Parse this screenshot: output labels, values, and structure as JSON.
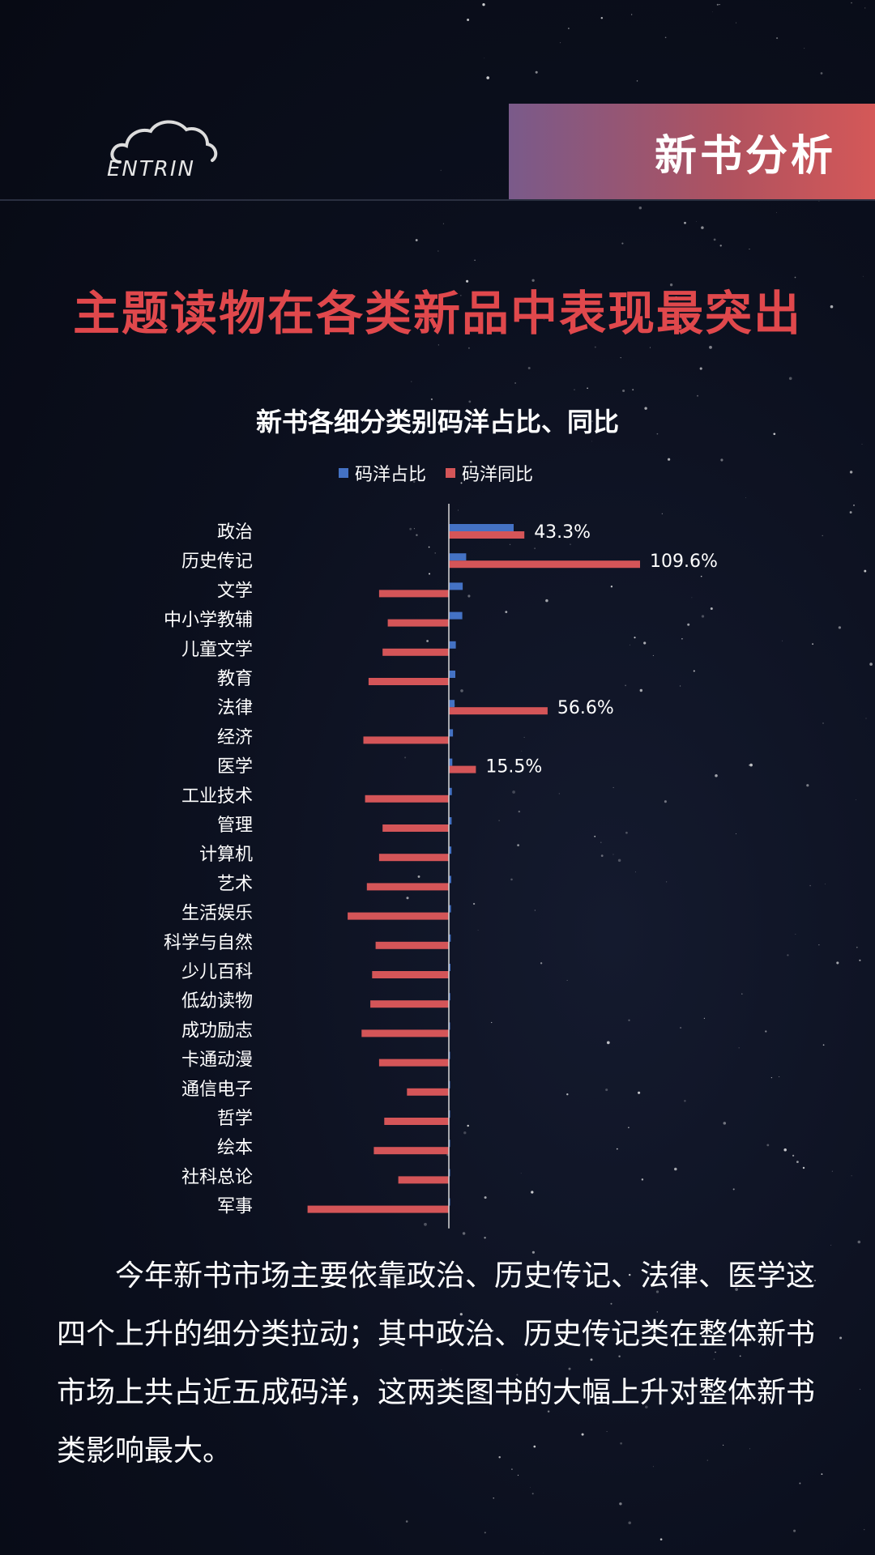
{
  "header": {
    "logo_text": "ENTRIN",
    "section_tag": "新书分析"
  },
  "headline": "主题读物在各类新品中表现最突出",
  "colors": {
    "share": "#4472c4",
    "yoy": "#d45558",
    "headline": "#e0484c"
  },
  "chart_data": {
    "type": "bar",
    "orientation": "horizontal",
    "title": "新书各细分类别码洋占比、同比",
    "legend_position": "top",
    "categories": [
      "政治",
      "历史传记",
      "文学",
      "中小学教辅",
      "儿童文学",
      "教育",
      "法律",
      "经济",
      "医学",
      "工业技术",
      "管理",
      "计算机",
      "艺术",
      "生活娱乐",
      "科学与自然",
      "少儿百科",
      "低幼读物",
      "成功励志",
      "卡通动漫",
      "通信电子",
      "哲学",
      "绘本",
      "社科总论",
      "军事"
    ],
    "series": [
      {
        "name": "码洋占比",
        "values": [
          28.0,
          7.5,
          6.0,
          5.8,
          3.0,
          2.8,
          2.5,
          1.8,
          1.5,
          1.3,
          1.2,
          1.1,
          1.0,
          0.9,
          0.8,
          0.7,
          0.6,
          0.5,
          0.5,
          0.4,
          0.4,
          0.3,
          0.3,
          0.2
        ],
        "data_labels": [
          "",
          "",
          "",
          "",
          "",
          "",
          "",
          "",
          "",
          "",
          "",
          "",
          "",
          "",
          "",
          "",
          "",
          "",
          "",
          "",
          "",
          "",
          "",
          ""
        ]
      },
      {
        "name": "码洋同比",
        "values": [
          43.3,
          109.6,
          -40.0,
          -35.0,
          -38.0,
          -46.0,
          56.6,
          -49.0,
          15.5,
          -48.0,
          -38.0,
          -40.0,
          -47.0,
          -58.0,
          -42.0,
          -44.0,
          -45.0,
          -50.0,
          -40.0,
          -24.0,
          -37.0,
          -43.0,
          -29.0,
          -81.0
        ],
        "data_labels": [
          "43.3%",
          "109.6%",
          "",
          "",
          "",
          "",
          "56.6%",
          "",
          "15.5%",
          "",
          "",
          "",
          "",
          "",
          "",
          "",
          "",
          "",
          "",
          "",
          "",
          "",
          "",
          ""
        ]
      }
    ],
    "xlim": [
      -85,
      125
    ],
    "grid": false
  },
  "body_text": "今年新书市场主要依靠政治、历史传记、法律、医学这四个上升的细分类拉动；其中政治、历史传记类在整体新书市场上共占近五成码洋，这两类图书的大幅上升对整体新书类影响最大。"
}
